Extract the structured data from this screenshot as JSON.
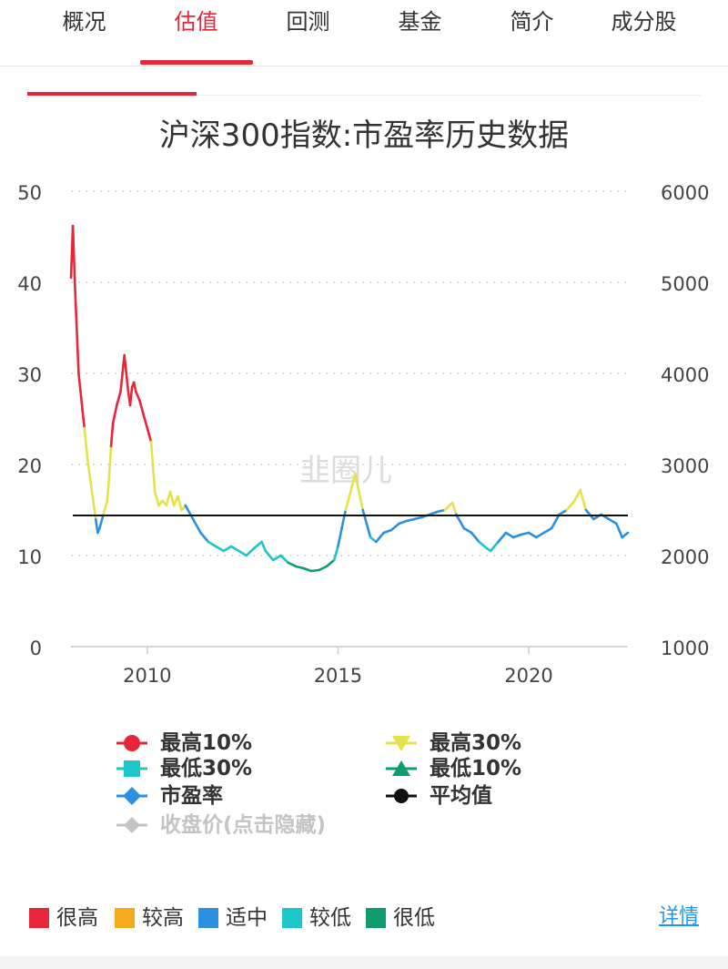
{
  "tabs": [
    {
      "label": "概况",
      "active": false
    },
    {
      "label": "估值",
      "active": true
    },
    {
      "label": "回测",
      "active": false
    },
    {
      "label": "基金",
      "active": false
    },
    {
      "label": "简介",
      "active": false
    },
    {
      "label": "成分股",
      "active": false
    }
  ],
  "watermark": "韭圈儿",
  "chart_data": {
    "type": "line",
    "title": "沪深300指数:市盈率历史数据",
    "y_left_ticks": [
      "50",
      "40",
      "30",
      "20",
      "10",
      "0"
    ],
    "y_right_ticks": [
      "6000",
      "5000",
      "4000",
      "3000",
      "2000",
      "1000"
    ],
    "ylim_left": [
      0,
      50
    ],
    "ylim_right": [
      1000,
      6000
    ],
    "xlim": [
      2008.0,
      2022.6
    ],
    "x_ticks": [
      "2010",
      "2015",
      "2020"
    ],
    "grid": true,
    "average_pe": 14.4,
    "thresholds": {
      "top10": 22.5,
      "top30": 15.0,
      "bottom30": 12.0,
      "bottom10": 9.5
    },
    "series": [
      {
        "name": "市盈率",
        "x": [
          2008.0,
          2008.05,
          2008.1,
          2008.15,
          2008.2,
          2008.25,
          2008.3,
          2008.35,
          2008.45,
          2008.55,
          2008.65,
          2008.7,
          2008.75,
          2008.85,
          2008.95,
          2009.0,
          2009.05,
          2009.1,
          2009.2,
          2009.3,
          2009.4,
          2009.5,
          2009.55,
          2009.6,
          2009.65,
          2009.7,
          2009.8,
          2009.9,
          2010.0,
          2010.1,
          2010.2,
          2010.3,
          2010.4,
          2010.5,
          2010.6,
          2010.7,
          2010.8,
          2010.9,
          2011.0,
          2011.2,
          2011.4,
          2011.6,
          2011.8,
          2012.0,
          2012.2,
          2012.4,
          2012.6,
          2012.8,
          2013.0,
          2013.1,
          2013.3,
          2013.5,
          2013.7,
          2013.9,
          2014.1,
          2014.3,
          2014.5,
          2014.7,
          2014.9,
          2015.0,
          2015.1,
          2015.2,
          2015.3,
          2015.45,
          2015.55,
          2015.65,
          2015.75,
          2015.85,
          2016.0,
          2016.2,
          2016.4,
          2016.6,
          2016.8,
          2017.0,
          2017.2,
          2017.4,
          2017.6,
          2017.8,
          2018.0,
          2018.1,
          2018.3,
          2018.5,
          2018.7,
          2018.9,
          2019.0,
          2019.2,
          2019.4,
          2019.6,
          2019.8,
          2020.0,
          2020.2,
          2020.4,
          2020.6,
          2020.8,
          2021.0,
          2021.1,
          2021.2,
          2021.35,
          2021.5,
          2021.7,
          2021.9,
          2022.1,
          2022.3,
          2022.45,
          2022.6
        ],
        "values": [
          40.5,
          46.2,
          40.0,
          35.0,
          30.0,
          28.0,
          26.0,
          24.0,
          20.0,
          17.0,
          14.0,
          12.5,
          13.0,
          14.5,
          16.0,
          18.5,
          22.0,
          24.5,
          26.5,
          28.0,
          32.0,
          28.0,
          26.5,
          28.5,
          29.0,
          28.0,
          27.0,
          25.5,
          24.0,
          22.5,
          17.0,
          15.5,
          16.0,
          15.5,
          17.0,
          15.5,
          16.5,
          15.0,
          15.5,
          14.0,
          12.5,
          11.5,
          11.0,
          10.5,
          11.0,
          10.5,
          10.0,
          10.8,
          11.5,
          10.5,
          9.5,
          10.0,
          9.2,
          8.8,
          8.6,
          8.3,
          8.4,
          8.8,
          9.5,
          11.0,
          13.0,
          15.0,
          16.5,
          19.0,
          17.0,
          15.0,
          13.5,
          12.0,
          11.5,
          12.5,
          12.8,
          13.5,
          13.8,
          14.0,
          14.2,
          14.5,
          14.8,
          15.0,
          15.8,
          14.5,
          13.0,
          12.5,
          11.5,
          10.8,
          10.5,
          11.5,
          12.5,
          12.0,
          12.3,
          12.5,
          12.0,
          12.5,
          13.0,
          14.5,
          15.0,
          15.5,
          16.0,
          17.2,
          15.0,
          14.0,
          14.5,
          14.0,
          13.5,
          12.0,
          12.5
        ]
      }
    ],
    "legend": [
      {
        "label": "最高10%",
        "color": "#e8263a",
        "marker": "circle",
        "enabled": true
      },
      {
        "label": "最高30%",
        "color": "#e5e34a",
        "marker": "triangle-down",
        "enabled": true
      },
      {
        "label": "最低30%",
        "color": "#1ec5c9",
        "marker": "square",
        "enabled": true
      },
      {
        "label": "最低10%",
        "color": "#119c6b",
        "marker": "triangle-up",
        "enabled": true
      },
      {
        "label": "市盈率",
        "color": "#2d8fe0",
        "marker": "diamond",
        "enabled": true
      },
      {
        "label": "平均值",
        "color": "#111111",
        "marker": "circle",
        "enabled": true
      },
      {
        "label": "收盘价(点击隐藏)",
        "color": "#c4c4c4",
        "marker": "diamond",
        "enabled": false
      }
    ]
  },
  "bands": [
    {
      "label": "很高",
      "color": "#e8263a"
    },
    {
      "label": "较高",
      "color": "#f6a91a"
    },
    {
      "label": "适中",
      "color": "#2d8fe0"
    },
    {
      "label": "较低",
      "color": "#1ec5c9"
    },
    {
      "label": "很低",
      "color": "#119c6b"
    }
  ],
  "detail_link": "详情"
}
